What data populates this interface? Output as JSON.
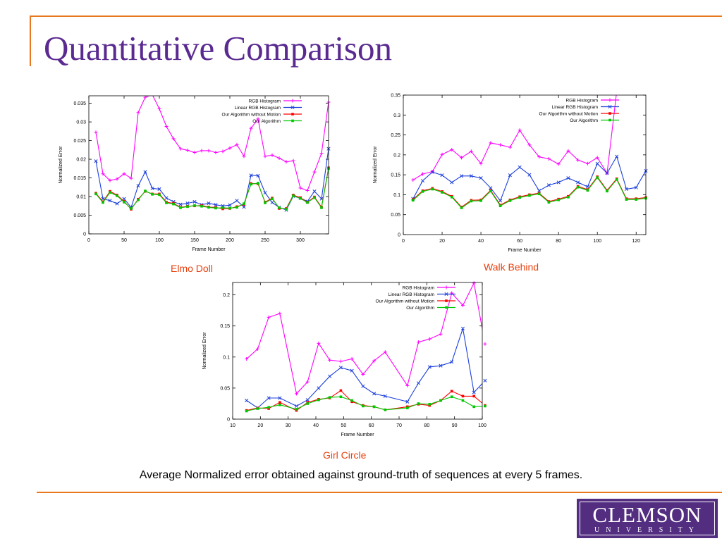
{
  "slide": {
    "title": "Quantitative Comparison",
    "footnote": "Average Normalized error obtained against ground-truth of sequences at every 5 frames.",
    "accent_color": "#e8781e",
    "title_color": "#5a2a91"
  },
  "logo": {
    "main": "CLEMSON",
    "sub": "UNIVERSITY",
    "color": "#522d80"
  },
  "chart_data": [
    {
      "type": "line",
      "caption": "Elmo Doll",
      "xlabel": "Frame Number",
      "ylabel": "Normalized Error",
      "xlim": [
        0,
        340
      ],
      "ylim": [
        0,
        0.037
      ],
      "xticks": [
        0,
        50,
        100,
        150,
        200,
        250,
        300
      ],
      "yticks": [
        0,
        0.005,
        0.01,
        0.015,
        0.02,
        0.025,
        0.03,
        0.035
      ],
      "x": [
        10,
        20,
        30,
        40,
        50,
        60,
        70,
        80,
        90,
        100,
        110,
        120,
        130,
        140,
        150,
        160,
        170,
        180,
        190,
        200,
        210,
        220,
        230,
        240,
        250,
        260,
        270,
        280,
        290,
        300,
        310,
        320,
        330,
        340
      ],
      "series": [
        {
          "name": "RGB Histogram",
          "color": "#ff00ff",
          "marker": "plus",
          "values": [
            0.0272,
            0.0161,
            0.0143,
            0.0147,
            0.0161,
            0.0149,
            0.0325,
            0.0366,
            0.0373,
            0.0335,
            0.0288,
            0.0255,
            0.0228,
            0.0224,
            0.0218,
            0.0223,
            0.0223,
            0.0218,
            0.0221,
            0.023,
            0.0239,
            0.0208,
            0.0283,
            0.0308,
            0.0208,
            0.0211,
            0.0203,
            0.0193,
            0.0196,
            0.0123,
            0.0116,
            0.0166,
            0.0216,
            0.0353
          ]
        },
        {
          "name": "Linear RGB Histogram",
          "color": "#1c3fdc",
          "marker": "x",
          "values": [
            0.0195,
            0.0094,
            0.0089,
            0.0081,
            0.0094,
            0.0071,
            0.0129,
            0.0166,
            0.0122,
            0.012,
            0.0096,
            0.0086,
            0.0079,
            0.0082,
            0.0086,
            0.0078,
            0.0082,
            0.0078,
            0.0075,
            0.0077,
            0.0089,
            0.0072,
            0.0157,
            0.0156,
            0.011,
            0.0084,
            0.0071,
            0.0064,
            0.0101,
            0.0096,
            0.0087,
            0.0114,
            0.0094,
            0.0228
          ]
        },
        {
          "name": "Our Algorithm without Motion",
          "color": "#ff0000",
          "marker": "square",
          "values": [
            0.0109,
            0.0086,
            0.0114,
            0.0104,
            0.0087,
            0.0066,
            0.0093,
            0.0114,
            0.0107,
            0.0107,
            0.0085,
            0.0082,
            0.0071,
            0.0074,
            0.0075,
            0.0076,
            0.0072,
            0.0071,
            0.0067,
            0.0068,
            0.0073,
            0.0079,
            0.0135,
            0.0134,
            0.0085,
            0.0096,
            0.0068,
            0.0068,
            0.0104,
            0.0097,
            0.0085,
            0.0099,
            0.0072,
            0.0177
          ]
        },
        {
          "name": "Our Algorithm",
          "color": "#00c800",
          "marker": "square",
          "values": [
            0.0107,
            0.0084,
            0.0111,
            0.0102,
            0.0085,
            0.0068,
            0.0091,
            0.0115,
            0.0106,
            0.0105,
            0.0083,
            0.008,
            0.007,
            0.0073,
            0.0076,
            0.0074,
            0.0071,
            0.0069,
            0.007,
            0.0069,
            0.0071,
            0.0081,
            0.0133,
            0.0136,
            0.0083,
            0.0094,
            0.007,
            0.0066,
            0.0102,
            0.0095,
            0.0084,
            0.0097,
            0.007,
            0.0175
          ]
        }
      ]
    },
    {
      "type": "line",
      "caption": "Walk Behind",
      "xlabel": "Frame Number",
      "ylabel": "Normalized Error",
      "xlim": [
        0,
        125
      ],
      "ylim": [
        0,
        0.35
      ],
      "xticks": [
        0,
        20,
        40,
        60,
        80,
        100,
        120
      ],
      "yticks": [
        0,
        0.05,
        0.1,
        0.15,
        0.2,
        0.25,
        0.3,
        0.35
      ],
      "x": [
        5,
        10,
        15,
        20,
        25,
        30,
        35,
        40,
        45,
        50,
        55,
        60,
        65,
        70,
        75,
        80,
        85,
        90,
        95,
        100,
        105,
        110,
        115,
        120,
        125
      ],
      "series": [
        {
          "name": "RGB Histogram",
          "color": "#ff00ff",
          "marker": "plus",
          "values": [
            0.137,
            0.152,
            0.158,
            0.201,
            0.213,
            0.193,
            0.209,
            0.178,
            0.23,
            0.225,
            0.219,
            0.262,
            0.225,
            0.195,
            0.19,
            0.177,
            0.21,
            0.187,
            0.178,
            0.193,
            0.154,
            0.36,
            null,
            null,
            null
          ]
        },
        {
          "name": "Linear RGB Histogram",
          "color": "#1c3fdc",
          "marker": "x",
          "values": [
            0.09,
            0.135,
            0.157,
            0.149,
            0.131,
            0.147,
            0.147,
            0.142,
            0.117,
            0.085,
            0.149,
            0.169,
            0.15,
            0.11,
            0.124,
            0.131,
            0.142,
            0.131,
            0.12,
            0.178,
            0.154,
            0.196,
            0.114,
            0.118,
            0.16
          ]
        },
        {
          "name": "Our Algorithm without Motion",
          "color": "#ff0000",
          "marker": "square",
          "values": [
            0.088,
            0.11,
            0.116,
            0.108,
            0.096,
            0.069,
            0.086,
            0.087,
            0.111,
            0.074,
            0.087,
            0.095,
            0.1,
            0.104,
            0.083,
            0.089,
            0.096,
            0.121,
            0.113,
            0.145,
            0.111,
            0.14,
            0.09,
            0.09,
            0.093
          ]
        },
        {
          "name": "Our Algorithm",
          "color": "#00c800",
          "marker": "square",
          "values": [
            0.086,
            0.108,
            0.114,
            0.106,
            0.094,
            0.067,
            0.084,
            0.085,
            0.109,
            0.072,
            0.085,
            0.093,
            0.098,
            0.102,
            0.081,
            0.087,
            0.094,
            0.119,
            0.111,
            0.143,
            0.109,
            0.138,
            0.088,
            0.088,
            0.091
          ]
        }
      ]
    },
    {
      "type": "line",
      "caption": "Girl Circle",
      "xlabel": "Frame Number",
      "ylabel": "Normalized Error",
      "xlim": [
        10,
        100
      ],
      "ylim": [
        0,
        0.22
      ],
      "xticks": [
        10,
        20,
        30,
        40,
        50,
        60,
        70,
        80,
        90,
        100
      ],
      "yticks": [
        0,
        0.05,
        0.1,
        0.15,
        0.2
      ],
      "x": [
        15,
        19,
        23,
        27,
        33,
        37,
        41,
        45,
        49,
        53,
        57,
        61,
        65,
        73,
        77,
        81,
        85,
        89,
        93,
        97,
        101
      ],
      "series": [
        {
          "name": "RGB Histogram",
          "color": "#ff00ff",
          "marker": "plus",
          "values": [
            0.097,
            0.113,
            0.164,
            0.17,
            0.041,
            0.06,
            0.122,
            0.095,
            0.093,
            0.097,
            0.072,
            0.094,
            0.108,
            0.054,
            0.124,
            0.129,
            0.137,
            0.203,
            0.183,
            0.219,
            0.121
          ]
        },
        {
          "name": "Linear RGB Histogram",
          "color": "#1c3fdc",
          "marker": "x",
          "values": [
            0.03,
            0.018,
            0.034,
            0.034,
            0.021,
            0.031,
            0.05,
            0.069,
            0.083,
            0.078,
            0.053,
            0.041,
            0.037,
            0.028,
            0.058,
            0.084,
            0.086,
            0.092,
            0.146,
            0.043,
            0.062
          ]
        },
        {
          "name": "Our Algorithm without Motion",
          "color": "#ff0000",
          "marker": "square",
          "values": [
            0.014,
            0.018,
            0.017,
            0.027,
            0.014,
            0.027,
            0.032,
            0.034,
            0.046,
            0.028,
            0.022,
            0.02,
            0.015,
            0.02,
            0.024,
            0.022,
            0.03,
            0.045,
            0.037,
            0.037,
            0.022
          ]
        },
        {
          "name": "Our Algorithm",
          "color": "#00c800",
          "marker": "square",
          "values": [
            0.013,
            0.017,
            0.019,
            0.023,
            0.016,
            0.025,
            0.031,
            0.035,
            0.036,
            0.03,
            0.021,
            0.02,
            0.015,
            0.018,
            0.025,
            0.024,
            0.03,
            0.036,
            0.03,
            0.02,
            0.021
          ]
        }
      ]
    }
  ]
}
